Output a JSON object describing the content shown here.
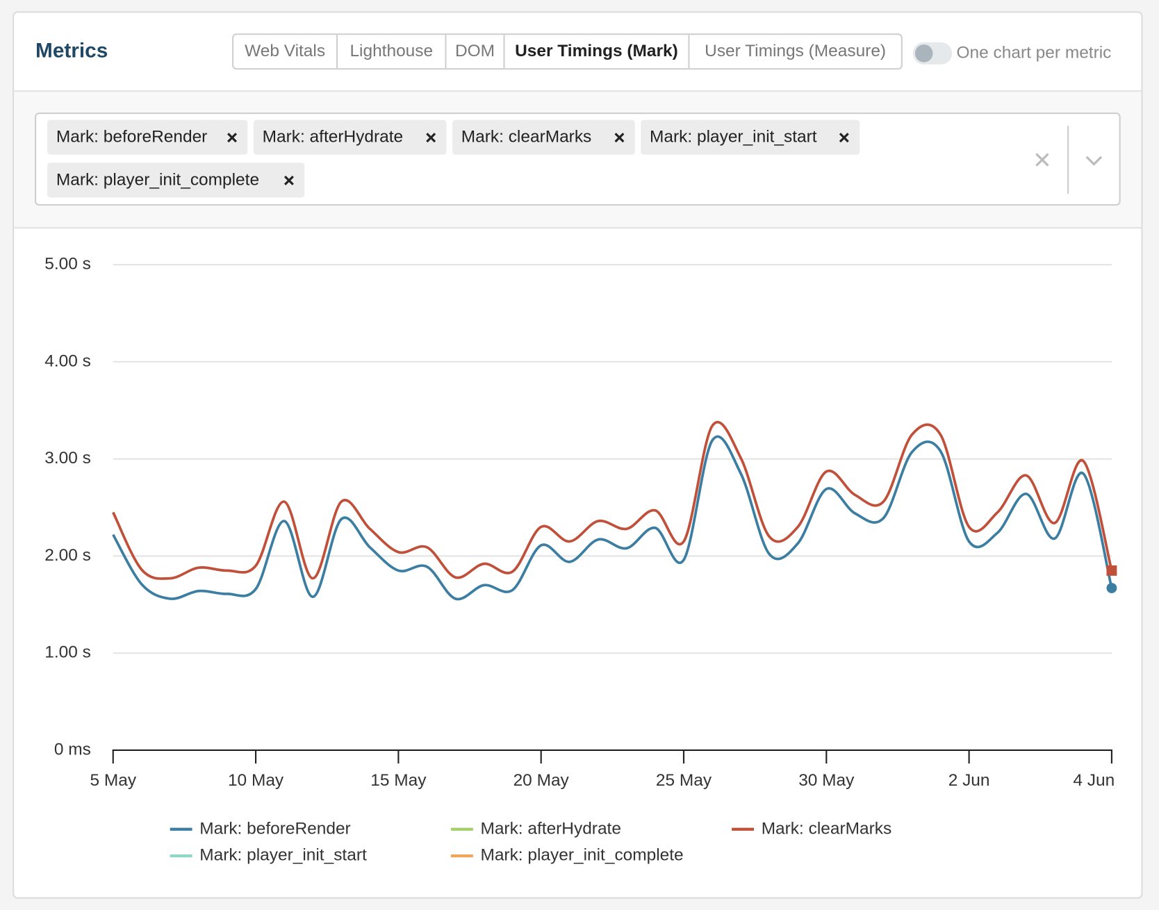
{
  "header": {
    "title": "Metrics",
    "tabs": [
      "Web Vitals",
      "Lighthouse",
      "DOM",
      "User Timings (Mark)",
      "User Timings (Measure)"
    ],
    "active_tab": 3,
    "toggle_label": "One chart per metric"
  },
  "filter": {
    "chips": [
      "Mark: beforeRender",
      "Mark: afterHydrate",
      "Mark: clearMarks",
      "Mark: player_init_start",
      "Mark: player_init_complete"
    ]
  },
  "chart_data": {
    "type": "line",
    "categories": [
      "5 May",
      null,
      null,
      null,
      null,
      "10 May",
      null,
      null,
      null,
      null,
      "15 May",
      null,
      null,
      null,
      null,
      "20 May",
      null,
      null,
      null,
      null,
      "25 May",
      null,
      null,
      null,
      null,
      "30 May",
      null,
      null,
      null,
      null,
      "2 Jun",
      null,
      null,
      null,
      null,
      "4 Jun"
    ],
    "series": [
      {
        "name": "Mark: beforeRender",
        "color": "#3b7ea1",
        "values": [
          2.22,
          1.71,
          1.56,
          1.64,
          1.61,
          1.66,
          2.36,
          1.58,
          2.38,
          2.09,
          1.85,
          1.89,
          1.56,
          1.7,
          1.65,
          2.11,
          1.94,
          2.17,
          2.08,
          2.29,
          1.96,
          3.19,
          2.85,
          2.02,
          2.13,
          2.69,
          2.44,
          2.39,
          3.07,
          3.08,
          2.15,
          2.24,
          2.64,
          2.18,
          2.85,
          1.67
        ]
      },
      {
        "name": "Mark: afterHydrate",
        "color": "#a5cf6a",
        "values": [
          null,
          null,
          null,
          null,
          null,
          null,
          null,
          null,
          null,
          null,
          null,
          null,
          null,
          null,
          null,
          null,
          null,
          null,
          null,
          null,
          null,
          null,
          null,
          null,
          null,
          null,
          null,
          null,
          null,
          null,
          null,
          null,
          null,
          null,
          null,
          null
        ]
      },
      {
        "name": "Mark: clearMarks",
        "color": "#c0503a",
        "values": [
          2.45,
          1.86,
          1.77,
          1.88,
          1.85,
          1.9,
          2.56,
          1.77,
          2.56,
          2.28,
          2.04,
          2.09,
          1.78,
          1.92,
          1.84,
          2.3,
          2.15,
          2.36,
          2.28,
          2.47,
          2.15,
          3.34,
          3.01,
          2.2,
          2.3,
          2.87,
          2.63,
          2.56,
          3.25,
          3.25,
          2.3,
          2.45,
          2.83,
          2.34,
          2.98,
          1.85
        ]
      },
      {
        "name": "Mark: player_init_start",
        "color": "#8fd6c6",
        "values": [
          null,
          null,
          null,
          null,
          null,
          null,
          null,
          null,
          null,
          null,
          null,
          null,
          null,
          null,
          null,
          null,
          null,
          null,
          null,
          null,
          null,
          null,
          null,
          null,
          null,
          null,
          null,
          null,
          null,
          null,
          null,
          null,
          null,
          null,
          null,
          null
        ]
      },
      {
        "name": "Mark: player_init_complete",
        "color": "#f0a45c",
        "values": [
          null,
          null,
          null,
          null,
          null,
          null,
          null,
          null,
          null,
          null,
          null,
          null,
          null,
          null,
          null,
          null,
          null,
          null,
          null,
          null,
          null,
          null,
          null,
          null,
          null,
          null,
          null,
          null,
          null,
          null,
          null,
          null,
          null,
          null,
          null,
          null
        ]
      }
    ],
    "ylim": [
      0,
      5
    ],
    "yticks": [
      {
        "value": 0,
        "label": "0 ms"
      },
      {
        "value": 1,
        "label": "1.00 s"
      },
      {
        "value": 2,
        "label": "2.00 s"
      },
      {
        "value": 3,
        "label": "3.00 s"
      },
      {
        "value": 4,
        "label": "4.00 s"
      },
      {
        "value": 5,
        "label": "5.00 s"
      }
    ],
    "grid": true
  }
}
